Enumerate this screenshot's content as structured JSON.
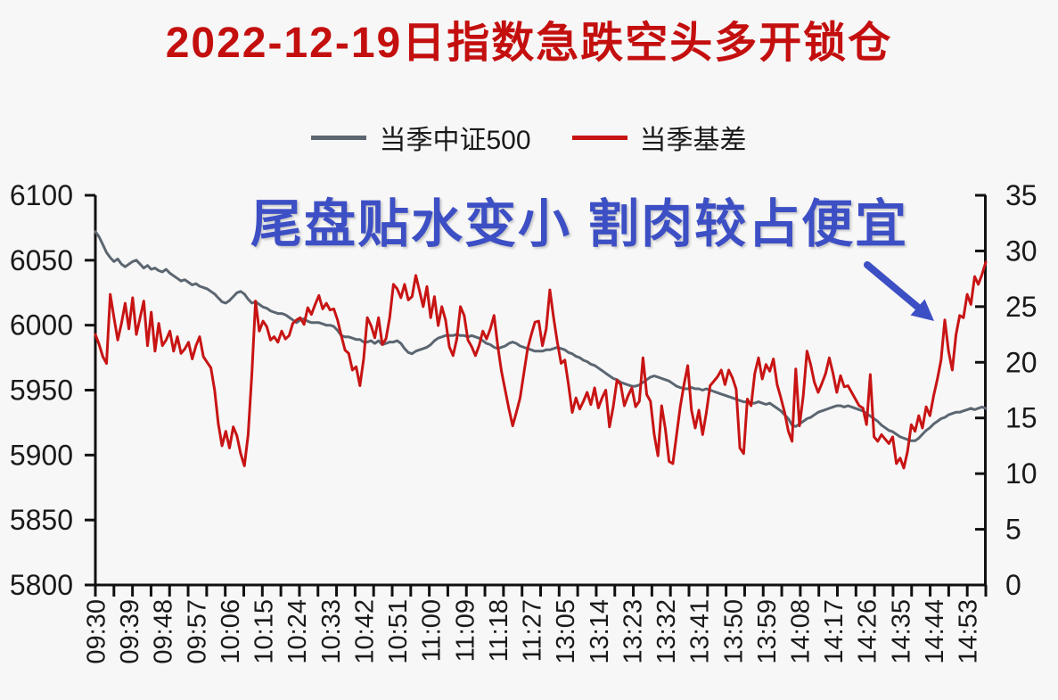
{
  "title": {
    "text": "2022-12-19日指数急跌空头多开锁仓",
    "color": "#c40f0f"
  },
  "legend": {
    "items": [
      {
        "label": "当季中证500",
        "color": "#5b6671"
      },
      {
        "label": "当季基差",
        "color": "#c81414"
      }
    ]
  },
  "annotation": {
    "text": "尾盘贴水变小 割肉较占便宜",
    "color": "#3d4fc4",
    "arrow_icon": "down-right-arrow"
  },
  "chart_data": {
    "type": "line",
    "background": "#f7f7f7",
    "axis_color": "#111111",
    "tick_label_color": "#1a1a1a",
    "grid": false,
    "legend_position": "top",
    "x_tick_labels": [
      "09:30",
      "09:39",
      "09:48",
      "09:57",
      "10:06",
      "10:15",
      "10:24",
      "10:33",
      "10:42",
      "10:51",
      "11:00",
      "11:09",
      "11:18",
      "11:27",
      "13:05",
      "13:14",
      "13:23",
      "13:32",
      "13:41",
      "13:50",
      "13:59",
      "14:08",
      "14:17",
      "14:26",
      "14:35",
      "14:44",
      "14:53"
    ],
    "x_label_every": 9,
    "x_minor_tick_intervals": 48,
    "left_axis": {
      "min": 5800,
      "max": 6100,
      "ticks": [
        6100,
        6050,
        6000,
        5950,
        5900,
        5850,
        5800
      ]
    },
    "right_axis": {
      "min": 0,
      "max": 35,
      "ticks": [
        35,
        30,
        25,
        20,
        15,
        10,
        5,
        0
      ]
    },
    "series": [
      {
        "name": "当季中证500",
        "axis": "left",
        "color": "#5b6671",
        "values": [
          6072,
          6068,
          6062,
          6056,
          6052,
          6049,
          6051,
          6047,
          6045,
          6047,
          6049,
          6050,
          6047,
          6044,
          6046,
          6043,
          6044,
          6042,
          6041,
          6043,
          6040,
          6038,
          6036,
          6034,
          6035,
          6033,
          6031,
          6032,
          6030,
          6029,
          6028,
          6026,
          6024,
          6021,
          6018,
          6017,
          6019,
          6022,
          6025,
          6026,
          6024,
          6020,
          6017,
          6018,
          6016,
          6014,
          6013,
          6011,
          6010,
          6009,
          6009,
          6008,
          6006,
          6004,
          6002,
          6004,
          6005,
          6003,
          6002,
          6002,
          6002,
          6001,
          6000,
          6000,
          5999,
          5996,
          5992,
          5991,
          5991,
          5990,
          5989,
          5989,
          5987,
          5987,
          5988,
          5986,
          5988,
          5985,
          5986,
          5987,
          5987,
          5988,
          5986,
          5982,
          5979,
          5978,
          5980,
          5981,
          5982,
          5983,
          5985,
          5988,
          5990,
          5991,
          5992,
          5992,
          5992,
          5993,
          5992,
          5992,
          5991,
          5992,
          5991,
          5990,
          5988,
          5986,
          5985,
          5983,
          5982,
          5983,
          5984,
          5986,
          5987,
          5986,
          5984,
          5983,
          5982,
          5981,
          5980,
          5980,
          5980,
          5981,
          5981,
          5982,
          5983,
          5982,
          5981,
          5979,
          5978,
          5976,
          5975,
          5973,
          5972,
          5970,
          5969,
          5967,
          5965,
          5963,
          5961,
          5959,
          5958,
          5956,
          5955,
          5954,
          5953,
          5953,
          5954,
          5956,
          5958,
          5960,
          5961,
          5960,
          5959,
          5958,
          5957,
          5955,
          5953,
          5952,
          5951,
          5951,
          5952,
          5951,
          5951,
          5950,
          5951,
          5950,
          5949,
          5948,
          5947,
          5946,
          5945,
          5944,
          5943,
          5942,
          5941,
          5941,
          5940,
          5940,
          5941,
          5940,
          5939,
          5940,
          5938,
          5936,
          5934,
          5931,
          5928,
          5923,
          5922,
          5924,
          5926,
          5928,
          5929,
          5931,
          5933,
          5934,
          5935,
          5936,
          5937,
          5938,
          5938,
          5937,
          5938,
          5937,
          5936,
          5935,
          5934,
          5932,
          5930,
          5928,
          5926,
          5923,
          5921,
          5919,
          5918,
          5916,
          5914,
          5913,
          5912,
          5911,
          5911,
          5913,
          5916,
          5919,
          5921,
          5924,
          5926,
          5928,
          5929,
          5931,
          5932,
          5933,
          5933,
          5934,
          5935,
          5936,
          5935,
          5936,
          5937,
          5936
        ]
      },
      {
        "name": "当季基差",
        "axis": "right",
        "color": "#c81414",
        "values": [
          22.5,
          21.6,
          20.5,
          19.9,
          26.1,
          24.0,
          22.0,
          23.5,
          25.3,
          23.0,
          25.8,
          22.5,
          24.0,
          25.5,
          21.5,
          24.5,
          21.0,
          23.5,
          21.5,
          22.0,
          22.8,
          21.0,
          22.3,
          20.8,
          21.2,
          21.8,
          20.3,
          21.5,
          22.3,
          20.5,
          20.0,
          19.5,
          17.5,
          14.5,
          12.5,
          13.8,
          12.3,
          14.2,
          13.4,
          11.8,
          10.7,
          13.5,
          19.0,
          25.5,
          22.8,
          23.7,
          23.2,
          22.0,
          22.3,
          21.8,
          22.8,
          22.1,
          22.4,
          23.5,
          23.8,
          24.0,
          23.4,
          24.9,
          24.3,
          25.2,
          26.0,
          24.8,
          25.3,
          24.7,
          24.8,
          23.8,
          22.4,
          21.1,
          20.8,
          19.3,
          19.6,
          17.9,
          20.3,
          24.0,
          23.3,
          22.2,
          24.0,
          21.6,
          22.1,
          24.0,
          27.0,
          26.6,
          25.8,
          27.0,
          25.6,
          25.9,
          27.8,
          26.4,
          25.0,
          26.8,
          24.0,
          25.9,
          23.3,
          25.0,
          23.8,
          21.4,
          20.6,
          22.1,
          25.0,
          24.2,
          22.0,
          21.4,
          20.6,
          21.5,
          22.8,
          22.1,
          23.0,
          24.2,
          21.5,
          19.2,
          17.5,
          15.8,
          14.3,
          15.5,
          16.8,
          19.0,
          21.2,
          22.5,
          23.6,
          23.7,
          21.5,
          23.0,
          26.5,
          24.0,
          21.8,
          19.9,
          20.2,
          18.0,
          15.5,
          16.8,
          15.8,
          16.5,
          17.3,
          16.2,
          17.7,
          15.9,
          16.8,
          17.5,
          14.2,
          16.0,
          18.4,
          18.0,
          16.1,
          17.0,
          17.7,
          16.0,
          16.5,
          20.4,
          17.1,
          16.5,
          13.5,
          11.6,
          16.1,
          14.0,
          11.1,
          10.9,
          13.5,
          16.0,
          18.0,
          19.7,
          15.7,
          14.1,
          15.7,
          13.5,
          15.5,
          17.9,
          18.3,
          18.7,
          19.3,
          18.0,
          19.3,
          18.6,
          17.6,
          12.3,
          11.8,
          16.7,
          16.1,
          19.0,
          20.4,
          18.5,
          19.8,
          19.2,
          20.3,
          18.0,
          16.8,
          15.5,
          13.8,
          12.9,
          19.4,
          14.3,
          17.0,
          21.0,
          19.8,
          18.2,
          17.3,
          18.1,
          19.0,
          20.4,
          19.0,
          17.3,
          18.8,
          17.8,
          17.9,
          17.3,
          16.7,
          16.1,
          15.9,
          14.4,
          18.9,
          13.3,
          12.9,
          13.5,
          13.1,
          12.7,
          13.3,
          10.9,
          11.4,
          10.5,
          12.0,
          14.4,
          13.8,
          15.2,
          14.1,
          16.0,
          15.2,
          17.0,
          18.5,
          20.2,
          23.8,
          21.0,
          19.3,
          22.5,
          24.2,
          24.0,
          26.1,
          25.2,
          27.7,
          27.0,
          27.9,
          29.0
        ]
      }
    ]
  }
}
